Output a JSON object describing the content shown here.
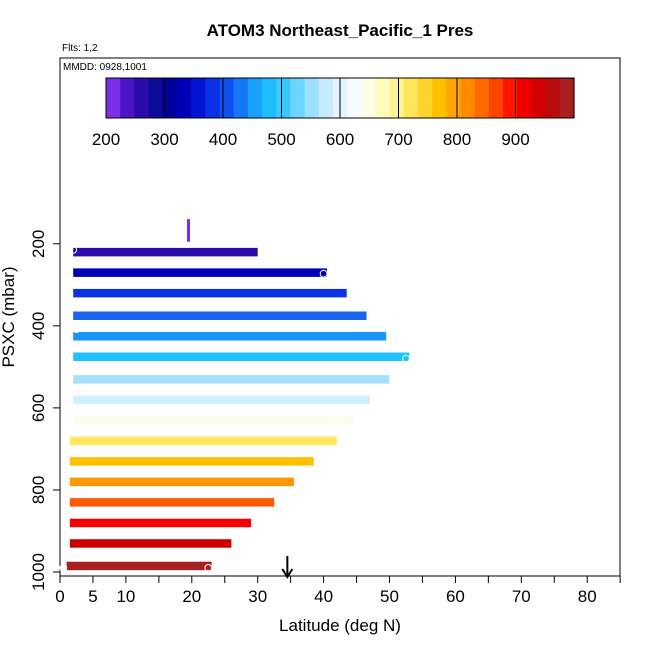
{
  "chart_data": {
    "type": "heatmap",
    "title": "ATOM3 Northeast_Pacific_1 Pres",
    "flights_label": "Flts: 1,2",
    "dates_label": "MMDD: 0928,1001",
    "xlabel": "Latitude (deg N)",
    "ylabel": "PSXC (mbar)",
    "xlim": [
      0,
      85
    ],
    "ylim": [
      1000,
      100
    ],
    "x_ticks": [
      0,
      5,
      10,
      20,
      30,
      40,
      50,
      60,
      70,
      80
    ],
    "y_ticks": [
      200,
      400,
      600,
      800,
      1000
    ],
    "colorbar": {
      "range": [
        200,
        1000
      ],
      "ticks": [
        200,
        300,
        400,
        500,
        600,
        700,
        800,
        900
      ],
      "colors": [
        "#7a2ee6",
        "#4a14c6",
        "#2a0aa8",
        "#0d0a9a",
        "#00009c",
        "#0000b8",
        "#0014d2",
        "#0a30e6",
        "#1050ee",
        "#1478f4",
        "#18a0fa",
        "#1ebefe",
        "#3cc8ff",
        "#6cd4ff",
        "#9cdfff",
        "#c6ebff",
        "#e4f4ff",
        "#f5fbff",
        "#fbfde6",
        "#fdfcbc",
        "#fff290",
        "#ffe55a",
        "#ffd52c",
        "#ffc000",
        "#ffa500",
        "#ff8a00",
        "#ff6a00",
        "#ff4400",
        "#ff1400",
        "#ee0000",
        "#d20000",
        "#b80c0c",
        "#a82020"
      ]
    },
    "pressure_bins": [
      {
        "pressure": 220,
        "lat_min": 2,
        "lat_max": 30,
        "color": "#2a0aa8"
      },
      {
        "pressure": 270,
        "lat_min": 2,
        "lat_max": 40.5,
        "color": "#0000b8"
      },
      {
        "pressure": 320,
        "lat_min": 2,
        "lat_max": 43.5,
        "color": "#0a30e6"
      },
      {
        "pressure": 375,
        "lat_min": 2,
        "lat_max": 46.5,
        "color": "#1a64f0"
      },
      {
        "pressure": 425,
        "lat_min": 2,
        "lat_max": 49.5,
        "color": "#1596f8"
      },
      {
        "pressure": 475,
        "lat_min": 2,
        "lat_max": 53,
        "color": "#1ec2ff"
      },
      {
        "pressure": 530,
        "lat_min": 2,
        "lat_max": 50,
        "color": "#a6e0ff"
      },
      {
        "pressure": 580,
        "lat_min": 2,
        "lat_max": 47,
        "color": "#d0eefc"
      },
      {
        "pressure": 630,
        "lat_min": 2,
        "lat_max": 44.5,
        "color": "#fafde8"
      },
      {
        "pressure": 680,
        "lat_min": 1.5,
        "lat_max": 42,
        "color": "#ffe860"
      },
      {
        "pressure": 730,
        "lat_min": 1.5,
        "lat_max": 38.5,
        "color": "#ffc000"
      },
      {
        "pressure": 780,
        "lat_min": 1.5,
        "lat_max": 35.5,
        "color": "#ff9800"
      },
      {
        "pressure": 830,
        "lat_min": 1.5,
        "lat_max": 32.5,
        "color": "#ff5a00"
      },
      {
        "pressure": 880,
        "lat_min": 1.5,
        "lat_max": 29,
        "color": "#f40000"
      },
      {
        "pressure": 930,
        "lat_min": 1.5,
        "lat_max": 26,
        "color": "#cc0000"
      },
      {
        "pressure": 985,
        "lat_min": 1,
        "lat_max": 23,
        "color": "#a82020"
      }
    ],
    "points": [
      {
        "lat": 2,
        "pressure": 215
      },
      {
        "lat": 2.5,
        "pressure": 408
      },
      {
        "lat": 40,
        "pressure": 273
      },
      {
        "lat": 40.5,
        "pressure": 497
      },
      {
        "lat": 52.5,
        "pressure": 480
      },
      {
        "lat": 42,
        "pressure": 635
      },
      {
        "lat": 0.5,
        "pressure": 990
      },
      {
        "lat": 22.5,
        "pressure": 990
      }
    ],
    "marker_arrow": {
      "lat": 34.5
    },
    "marker_tick": {
      "lat": 19.5,
      "pressure_top": 140,
      "pressure_bottom": 195
    }
  }
}
